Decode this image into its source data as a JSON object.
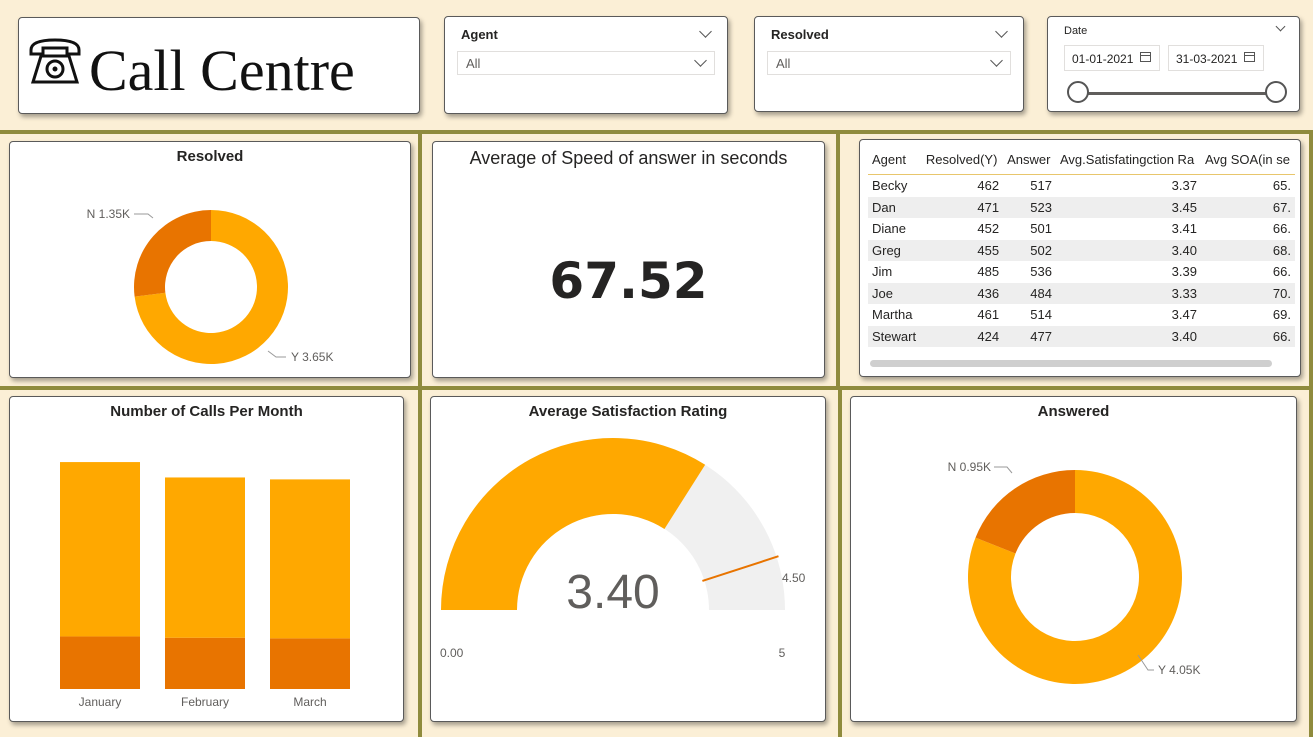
{
  "header": {
    "title": "Call Centre",
    "agent_slicer": {
      "label": "Agent",
      "value": "All"
    },
    "resolved_slicer": {
      "label": "Resolved",
      "value": "All"
    },
    "date_slicer": {
      "label": "Date",
      "start": "01-01-2021",
      "end": "31-03-2021"
    }
  },
  "colors": {
    "primary": "#FFA800",
    "secondary": "#E87400",
    "gauge_bg": "#F0F0F0",
    "grid_lines": "#8F8B3D",
    "background": "#FBEFD6"
  },
  "resolved_chart": {
    "title": "Resolved",
    "chart_data": {
      "type": "pie",
      "style": "donut",
      "categories": [
        "N",
        "Y"
      ],
      "values": [
        1350,
        3650
      ],
      "labels": [
        "N 1.35K",
        "Y 3.65K"
      ]
    }
  },
  "kpi": {
    "title": "Average of Speed of answer in seconds",
    "value": "67.52"
  },
  "agent_table": {
    "columns": [
      "Agent",
      "Resolved(Y)",
      "Answer",
      "Avg.Satisfatingction Ra",
      "Avg SOA(in se"
    ],
    "rows": [
      [
        "Becky",
        "462",
        "517",
        "3.37",
        "65."
      ],
      [
        "Dan",
        "471",
        "523",
        "3.45",
        "67."
      ],
      [
        "Diane",
        "452",
        "501",
        "3.41",
        "66."
      ],
      [
        "Greg",
        "455",
        "502",
        "3.40",
        "68."
      ],
      [
        "Jim",
        "485",
        "536",
        "3.39",
        "66."
      ],
      [
        "Joe",
        "436",
        "484",
        "3.33",
        "70."
      ],
      [
        "Martha",
        "461",
        "514",
        "3.47",
        "69."
      ],
      [
        "Stewart",
        "424",
        "477",
        "3.40",
        "66."
      ]
    ]
  },
  "calls_chart": {
    "title": "Number of Calls Per Month",
    "chart_data": {
      "type": "bar",
      "stacked": true,
      "categories": [
        "January",
        "February",
        "March"
      ],
      "series": [
        {
          "values": [
            410,
            400,
            395
          ]
        },
        {
          "values": [
            1360,
            1250,
            1240
          ]
        }
      ],
      "ylim": [
        0,
        1950
      ]
    }
  },
  "gauge": {
    "title": "Average Satisfaction Rating",
    "chart_data": {
      "type": "gauge",
      "value": 3.4,
      "min": 0,
      "max": 5,
      "target": 4.5,
      "value_label": "3.40",
      "min_label": "0.00",
      "max_label": "5",
      "target_label": "4.50"
    }
  },
  "answered_chart": {
    "title": "Answered",
    "chart_data": {
      "type": "pie",
      "style": "donut",
      "categories": [
        "N",
        "Y"
      ],
      "values": [
        950,
        4050
      ],
      "labels": [
        "N 0.95K",
        "Y 4.05K"
      ]
    }
  }
}
